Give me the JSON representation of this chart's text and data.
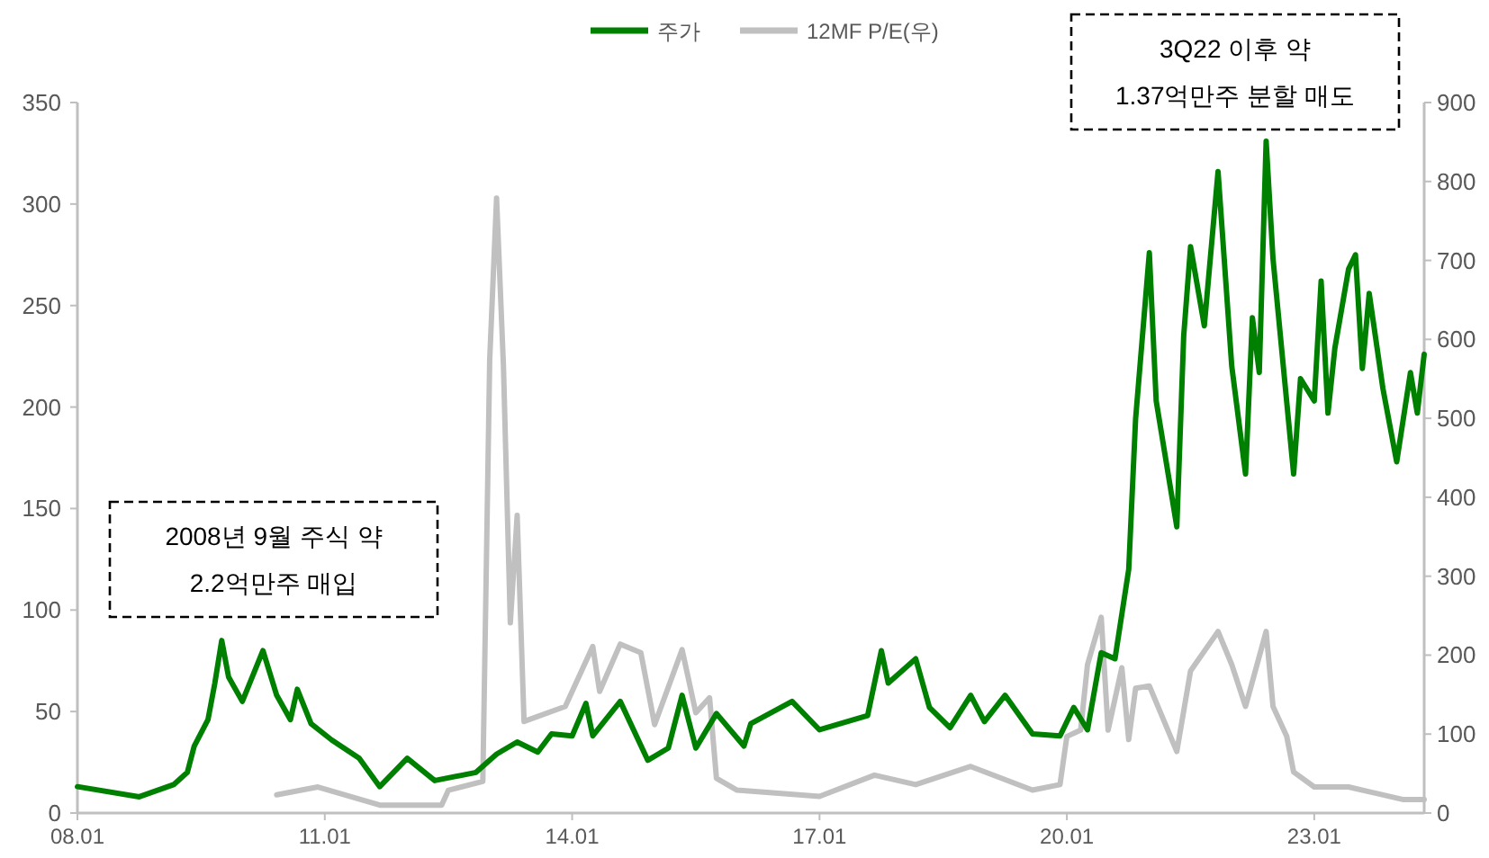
{
  "chart_data": {
    "type": "line",
    "x": [
      "2008-01",
      "2008-10",
      "2009-03",
      "2009-05",
      "2009-06",
      "2009-08",
      "2009-09",
      "2009-10",
      "2009-11",
      "2010-01",
      "2010-04",
      "2010-06",
      "2010-08",
      "2010-09",
      "2010-11",
      "2011-02",
      "2011-06",
      "2011-09",
      "2012-01",
      "2012-05",
      "2012-11",
      "2013-02",
      "2013-05",
      "2013-08",
      "2013-10",
      "2014-01",
      "2014-03",
      "2014-04",
      "2014-08",
      "2014-12",
      "2015-03",
      "2015-05",
      "2015-07",
      "2015-10",
      "2016-02",
      "2016-03",
      "2016-09",
      "2017-01",
      "2017-08",
      "2017-10",
      "2017-11",
      "2018-03",
      "2018-05",
      "2018-08",
      "2018-11",
      "2019-01",
      "2019-04",
      "2019-08",
      "2019-12",
      "2020-02",
      "2020-04",
      "2020-06",
      "2020-08",
      "2020-10",
      "2020-11",
      "2021-01",
      "2021-02",
      "2021-05",
      "2021-06",
      "2021-07",
      "2021-09",
      "2021-11",
      "2022-01",
      "2022-03",
      "2022-04",
      "2022-05",
      "2022-06",
      "2022-07",
      "2022-10",
      "2022-11",
      "2023-01",
      "2023-02",
      "2023-03",
      "2023-04",
      "2023-06",
      "2023-07",
      "2023-08",
      "2023-09",
      "2023-11",
      "2024-01",
      "2024-03",
      "2024-04",
      "2024-05"
    ],
    "series": [
      {
        "name": "주가",
        "color": "#008000",
        "values": [
          13,
          8,
          14,
          20,
          33,
          46,
          64,
          85,
          67,
          55,
          80,
          58,
          46,
          61,
          44,
          36,
          27,
          13,
          27,
          16,
          20,
          29,
          35,
          30,
          39,
          38,
          54,
          38,
          55,
          26,
          32,
          58,
          32,
          49,
          33,
          44,
          55,
          41,
          48,
          80,
          64,
          76,
          52,
          42,
          58,
          45,
          58,
          39,
          38,
          52,
          41,
          79,
          76,
          120,
          194,
          276,
          203,
          141,
          235,
          279,
          240,
          316,
          220,
          167,
          244,
          217,
          331,
          273,
          167,
          214,
          203,
          262,
          197,
          229,
          268,
          275,
          219,
          256,
          209,
          173,
          217,
          197,
          226
        ]
      },
      {
        "name": "12MF P/E(우)",
        "color": "#c0c0c0",
        "axis": "y2",
        "x": [
          "2010-06",
          "2010-12",
          "2011-09",
          "2012-06",
          "2012-07",
          "2012-12",
          "2013-01",
          "2013-02",
          "2013-03",
          "2013-04",
          "2013-05",
          "2013-06",
          "2013-12",
          "2014-04",
          "2014-05",
          "2014-08",
          "2014-11",
          "2015-01",
          "2015-05",
          "2015-07",
          "2015-09",
          "2015-10",
          "2016-01",
          "2017-01",
          "2017-09",
          "2018-03",
          "2018-11",
          "2019-08",
          "2019-12",
          "2020-01",
          "2020-03",
          "2020-04",
          "2020-06",
          "2020-07",
          "2020-09",
          "2020-10",
          "2020-11",
          "2021-01",
          "2021-05",
          "2021-07",
          "2021-11",
          "2022-01",
          "2022-03",
          "2022-06",
          "2022-07",
          "2022-09",
          "2022-10",
          "2023-01",
          "2023-06",
          "2024-02",
          "2024-05"
        ],
        "values": [
          23,
          33,
          10,
          10,
          29,
          40,
          574,
          779,
          567,
          241,
          377,
          116,
          135,
          211,
          154,
          214,
          203,
          112,
          207,
          127,
          146,
          44,
          29,
          21,
          48,
          36,
          59,
          29,
          36,
          97,
          105,
          188,
          248,
          105,
          184,
          93,
          158,
          161,
          78,
          180,
          230,
          188,
          135,
          230,
          135,
          97,
          52,
          33,
          33,
          17,
          17
        ]
      }
    ],
    "xlim": [
      "2008-01",
      "2024-05"
    ],
    "xticks": [
      {
        "value": "2008-01",
        "label": "08.01"
      },
      {
        "value": "2011-01",
        "label": "11.01"
      },
      {
        "value": "2014-01",
        "label": "14.01"
      },
      {
        "value": "2017-01",
        "label": "17.01"
      },
      {
        "value": "2020-01",
        "label": "20.01"
      },
      {
        "value": "2023-01",
        "label": "23.01"
      }
    ],
    "ylim": [
      0,
      350
    ],
    "yticks": [
      0,
      50,
      100,
      150,
      200,
      250,
      300,
      350
    ],
    "y2lim": [
      0,
      900
    ],
    "y2ticks": [
      0,
      100,
      200,
      300,
      400,
      500,
      600,
      700,
      800,
      900
    ],
    "legend": "top",
    "grid": false,
    "annotations": [
      "2008년 9월 주식 약\n2.2억만주 매입",
      "3Q22 이후 약\n1.37억만주 분할 매도"
    ]
  }
}
